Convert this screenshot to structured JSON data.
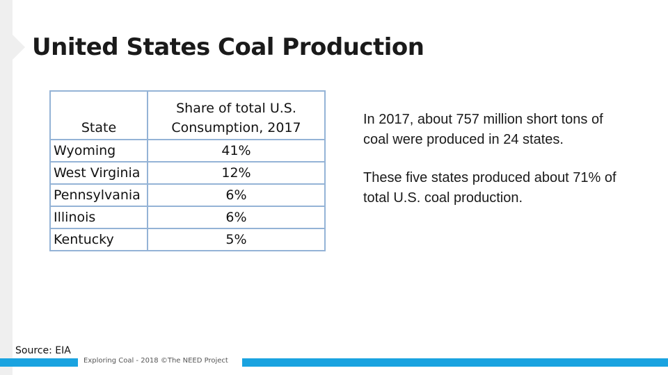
{
  "slide": {
    "title": "United States Coal Production"
  },
  "table": {
    "headers": {
      "state": "State",
      "share_line1": "Share of total U.S.",
      "share_line2": "Consumption, 2017"
    },
    "rows": [
      {
        "state": "Wyoming",
        "share": "41%"
      },
      {
        "state": "West Virginia",
        "share": "12%"
      },
      {
        "state": "Pennsylvania",
        "share": "6%"
      },
      {
        "state": "Illinois",
        "share": "6%"
      },
      {
        "state": "Kentucky",
        "share": "5%"
      }
    ]
  },
  "info": {
    "paragraph1": "In 2017, about 757 million short tons of coal were produced in 24 states.",
    "paragraph2": "These five states produced about 71% of total U.S. coal production."
  },
  "source": "Source:  EIA",
  "footer": "Exploring Coal - 2018 ©The NEED Project",
  "colors": {
    "accent_bar": "#1aa3e0",
    "table_border": "#94b3d6",
    "side_strip": "#efefef"
  }
}
